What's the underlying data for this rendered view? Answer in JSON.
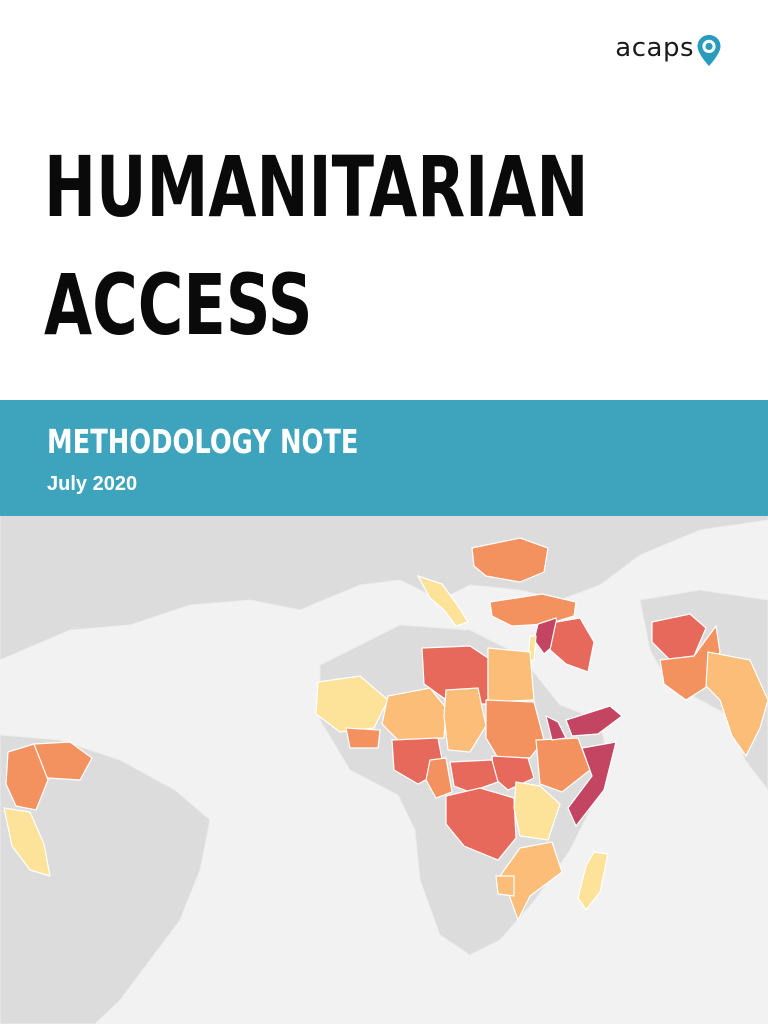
{
  "logo": {
    "text": "acaps"
  },
  "title": {
    "line1": "HUMANITARIAN",
    "line2": "ACCESS"
  },
  "banner": {
    "heading": "METHODOLOGY NOTE",
    "date": "July 2020"
  },
  "colors": {
    "banner": "#34a0bc",
    "background_land": "#dcdcdc",
    "ocean": "#f2f2f2",
    "logo_pin": "#2a9bbd",
    "access_scale": [
      "#fde29a",
      "#fbbd78",
      "#f3925f",
      "#e7695b",
      "#c44561"
    ]
  },
  "map": {
    "legend_shown": false,
    "highlighted_regions": [
      "Ukraine",
      "Italy",
      "Turkey",
      "Syria",
      "Iraq",
      "Lebanon",
      "Libya",
      "Egypt",
      "Mali",
      "Niger",
      "Chad",
      "Sudan",
      "Ethiopia",
      "Somalia",
      "Yemen",
      "Nigeria",
      "Cameroon",
      "Central African Republic",
      "DR Congo",
      "Uganda",
      "Tanzania",
      "Mozambique",
      "Madagascar",
      "Afghanistan",
      "Pakistan",
      "India",
      "Venezuela",
      "Colombia",
      "Peru"
    ]
  }
}
